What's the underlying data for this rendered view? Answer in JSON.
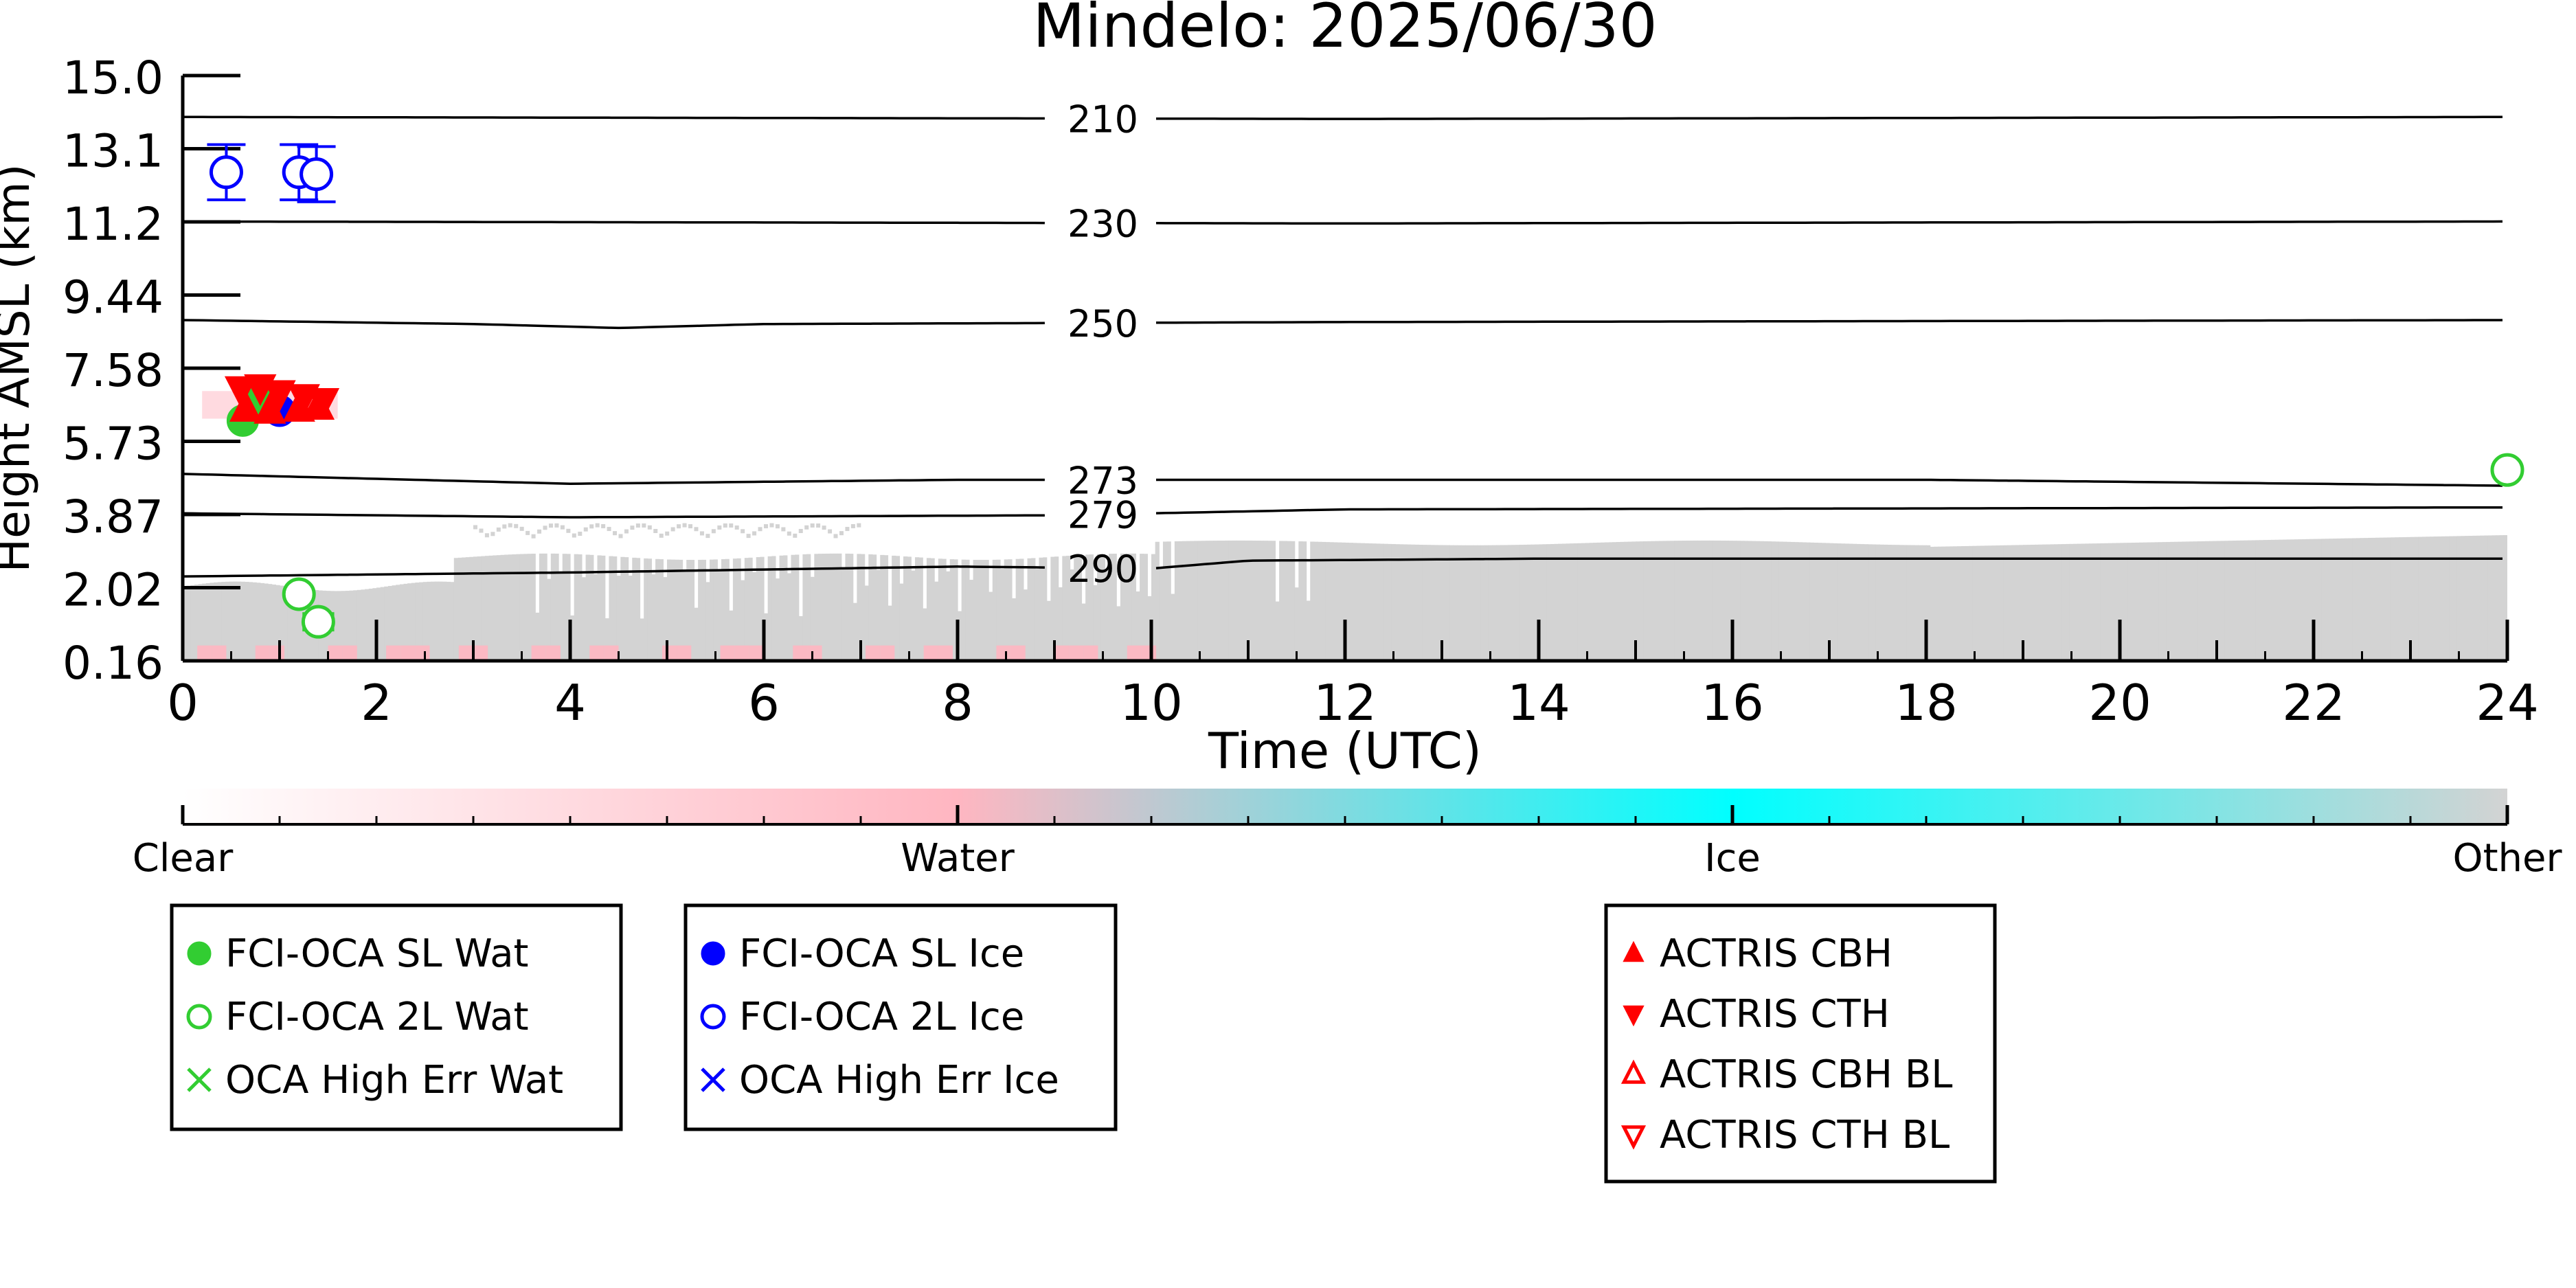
{
  "chart_data": {
    "type": "scatter",
    "title": "Mindelo: 2025/06/30",
    "xlabel": "Time (UTC)",
    "ylabel": "Height AMSL (km)",
    "xlim": [
      0,
      24
    ],
    "ylim": [
      0.16,
      15.0
    ],
    "x_ticks": [
      "0",
      "2",
      "4",
      "6",
      "8",
      "10",
      "12",
      "14",
      "16",
      "18",
      "20",
      "22",
      "24"
    ],
    "y_ticks": [
      "0.16",
      "2.02",
      "3.87",
      "5.73",
      "7.58",
      "9.44",
      "11.2",
      "13.1",
      "15.0"
    ],
    "temperature_contours": [
      {
        "label": "210",
        "points": [
          [
            0,
            13.95
          ],
          [
            12,
            13.9
          ],
          [
            24,
            13.95
          ]
        ]
      },
      {
        "label": "230",
        "points": [
          [
            0,
            11.3
          ],
          [
            12,
            11.25
          ],
          [
            24,
            11.3
          ]
        ]
      },
      {
        "label": "250",
        "points": [
          [
            0,
            8.8
          ],
          [
            3,
            8.7
          ],
          [
            4.5,
            8.6
          ],
          [
            6,
            8.7
          ],
          [
            12,
            8.75
          ],
          [
            24,
            8.8
          ]
        ]
      },
      {
        "label": "273",
        "points": [
          [
            0,
            4.9
          ],
          [
            4,
            4.65
          ],
          [
            8,
            4.75
          ],
          [
            12,
            4.75
          ],
          [
            18,
            4.75
          ],
          [
            24,
            4.6
          ]
        ]
      },
      {
        "label": "279",
        "points": [
          [
            0,
            3.9
          ],
          [
            4,
            3.8
          ],
          [
            9,
            3.85
          ],
          [
            12,
            4.0
          ],
          [
            24,
            4.05
          ]
        ]
      },
      {
        "label": "290",
        "points": [
          [
            0,
            2.3
          ],
          [
            4,
            2.4
          ],
          [
            8,
            2.55
          ],
          [
            10,
            2.5
          ],
          [
            11,
            2.7
          ],
          [
            14,
            2.75
          ],
          [
            24,
            2.75
          ]
        ]
      }
    ],
    "classification_colorbar": {
      "categories": [
        "Clear",
        "Water",
        "Ice",
        "Other"
      ],
      "colors": [
        "#ffffff",
        "#ffb6c1",
        "#00ffff",
        "#d3d3d3"
      ]
    },
    "series": [
      {
        "name": "FCI-OCA SL Wat",
        "marker": "filled-circle",
        "color": "#32cd32",
        "points": [
          {
            "x": 0.62,
            "y": 6.25
          },
          {
            "x": 0.8,
            "y": 6.75
          }
        ]
      },
      {
        "name": "FCI-OCA 2L Wat",
        "marker": "open-circle",
        "color": "#32cd32",
        "points": [
          {
            "x": 1.2,
            "y": 1.85,
            "xerr": 0.12
          },
          {
            "x": 1.4,
            "y": 1.15,
            "xerr": 0.15
          },
          {
            "x": 24.0,
            "y": 5.0,
            "xerr": 0.05
          }
        ]
      },
      {
        "name": "OCA High Err Wat",
        "marker": "x",
        "color": "#32cd32",
        "points": []
      },
      {
        "name": "FCI-OCA SL Ice",
        "marker": "filled-circle",
        "color": "#0000ff",
        "points": [
          {
            "x": 1.0,
            "y": 6.5
          }
        ]
      },
      {
        "name": "FCI-OCA 2L Ice",
        "marker": "open-circle",
        "color": "#0000ff",
        "points": [
          {
            "x": 0.45,
            "y": 12.55,
            "yerr": 0.7
          },
          {
            "x": 1.2,
            "y": 12.55,
            "yerr": 0.7
          },
          {
            "x": 1.38,
            "y": 12.5,
            "yerr": 0.7
          }
        ]
      },
      {
        "name": "OCA High Err Ice",
        "marker": "x",
        "color": "#0000ff",
        "points": []
      },
      {
        "name": "ACTRIS CBH",
        "marker": "triangle-up",
        "color": "#ff0000",
        "points": [
          {
            "x": 0.65,
            "y": 6.55
          },
          {
            "x": 0.9,
            "y": 6.5
          },
          {
            "x": 1.2,
            "y": 6.55
          },
          {
            "x": 1.4,
            "y": 6.6
          }
        ]
      },
      {
        "name": "ACTRIS CTH",
        "marker": "triangle-down",
        "color": "#ff0000",
        "points": [
          {
            "x": 0.6,
            "y": 7.05
          },
          {
            "x": 0.8,
            "y": 7.1
          },
          {
            "x": 1.0,
            "y": 6.95
          },
          {
            "x": 1.25,
            "y": 6.85
          },
          {
            "x": 1.45,
            "y": 6.75
          }
        ]
      },
      {
        "name": "ACTRIS CBH BL",
        "marker": "open-triangle-up",
        "color": "#ff0000",
        "points": []
      },
      {
        "name": "ACTRIS CTH BL",
        "marker": "open-triangle-down",
        "color": "#ff0000",
        "points": []
      }
    ],
    "legend": {
      "groups": [
        [
          "FCI-OCA SL Wat",
          "FCI-OCA 2L Wat",
          "OCA High Err Wat"
        ],
        [
          "FCI-OCA SL Ice",
          "FCI-OCA 2L Ice",
          "OCA High Err Ice"
        ],
        [
          "ACTRIS CBH",
          "ACTRIS CTH",
          "ACTRIS CBH BL",
          "ACTRIS CTH BL"
        ]
      ],
      "placement": "bottom"
    }
  }
}
